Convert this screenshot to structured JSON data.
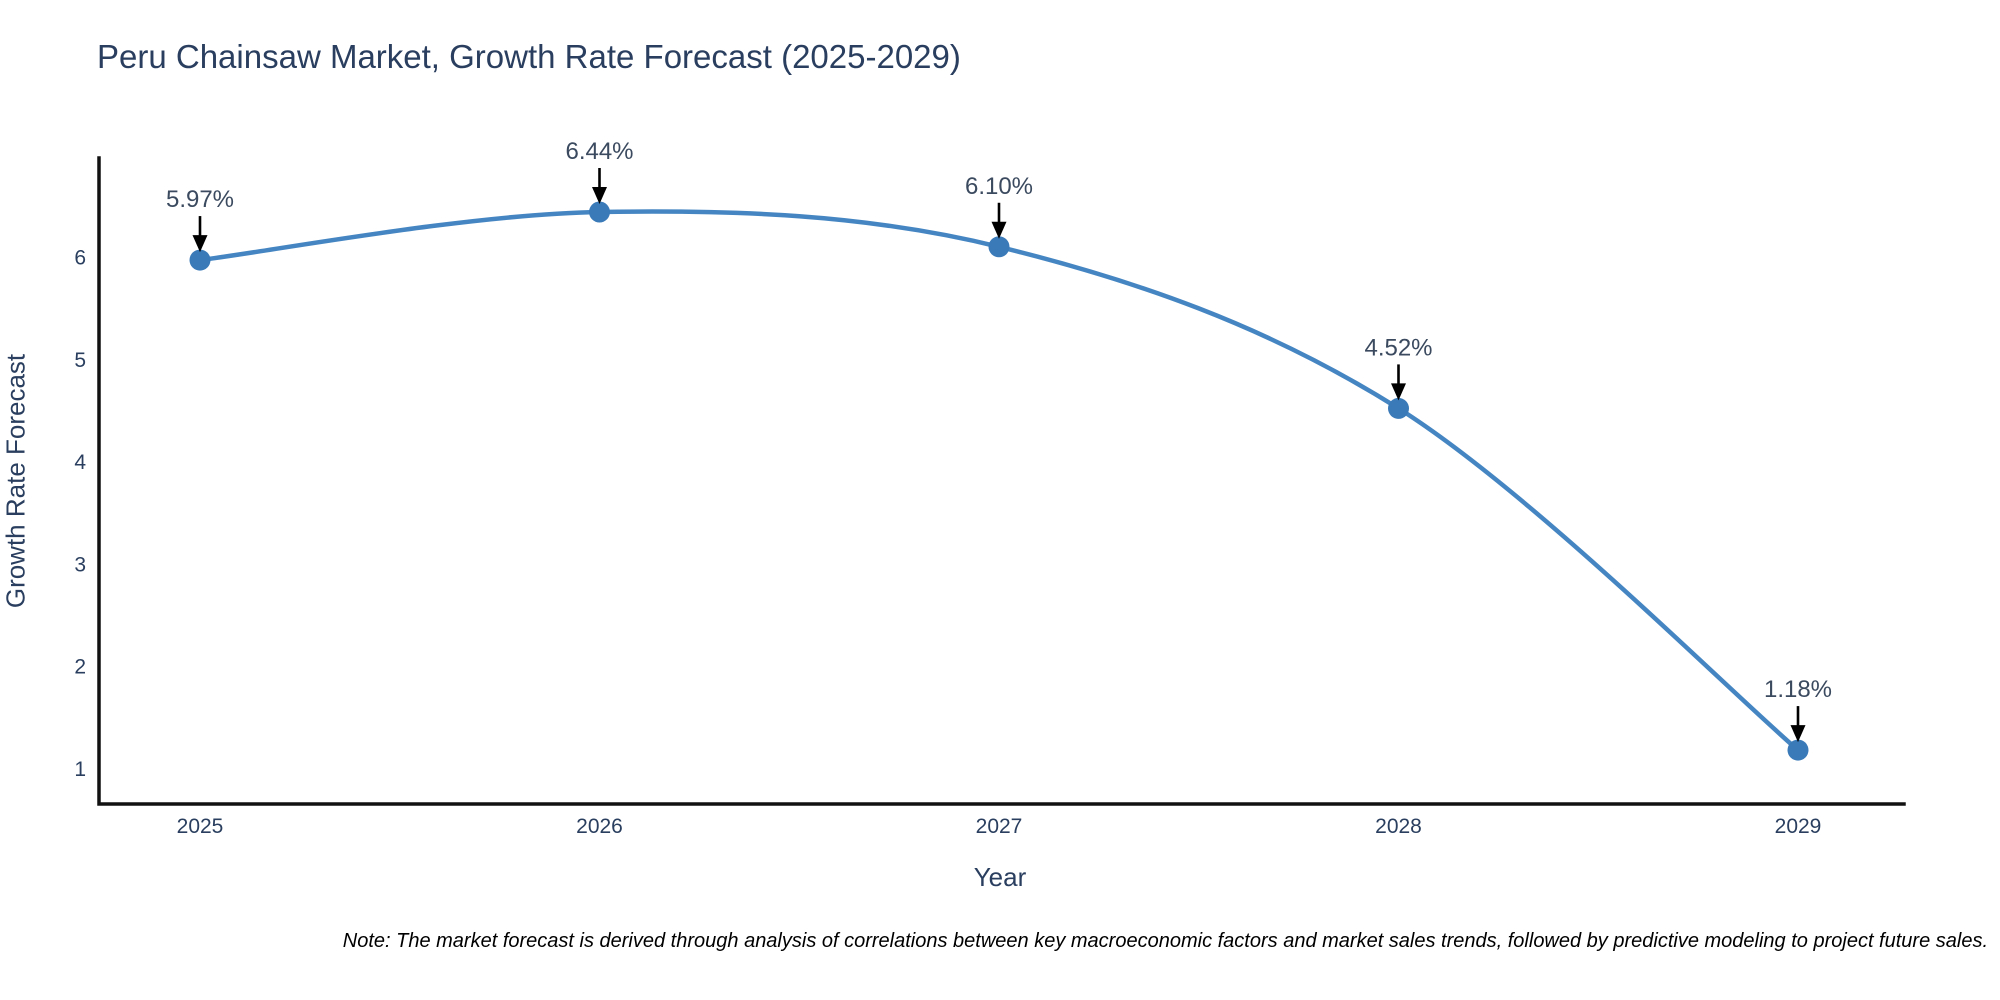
{
  "header": {
    "title": "Peru Chainsaw Market, Growth Rate Forecast (2025-2029)"
  },
  "footnote": {
    "text": "Note: The market forecast is derived through analysis of correlations between key macroeconomic factors and market sales trends, followed by predictive modeling to project future sales."
  },
  "chart_data": {
    "type": "line",
    "title": "Peru Chainsaw Market, Growth Rate Forecast (2025-2029)",
    "xlabel": "Year",
    "ylabel": "Growth Rate Forecast",
    "x": [
      2025,
      2026,
      2027,
      2028,
      2029
    ],
    "series": [
      {
        "name": "Growth Rate Forecast",
        "values": [
          5.97,
          6.44,
          6.1,
          4.52,
          1.18
        ],
        "point_labels": [
          "5.97%",
          "6.44%",
          "6.10%",
          "4.52%",
          "1.18%"
        ]
      }
    ],
    "y_ticks": [
      1,
      2,
      3,
      4,
      5,
      6
    ],
    "ylim": [
      0.64,
      6.95
    ],
    "xlim": [
      2024.74,
      2029.26
    ],
    "line_shape": "spline",
    "markers": true,
    "grid": false,
    "legend_position": "none",
    "annotations_have_arrows": true,
    "colors": {
      "line": "#4586c2",
      "marker": "#3a7ab8",
      "axis_line": "#111111",
      "tick_text": "#2a3f5f",
      "annotation_text": "#3b4a5f",
      "arrow": "#000000",
      "title_text": "#2a3f5f"
    }
  }
}
